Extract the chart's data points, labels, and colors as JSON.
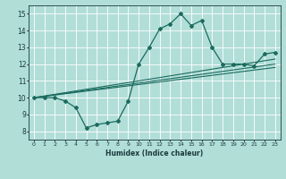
{
  "xlabel": "Humidex (Indice chaleur)",
  "ylabel": "",
  "background_color": "#b2ded8",
  "grid_color": "#ffffff",
  "line_color": "#1a6b5e",
  "xlim": [
    -0.5,
    23.5
  ],
  "ylim": [
    7.5,
    15.5
  ],
  "xticks": [
    0,
    1,
    2,
    3,
    4,
    5,
    6,
    7,
    8,
    9,
    10,
    11,
    12,
    13,
    14,
    15,
    16,
    17,
    18,
    19,
    20,
    21,
    22,
    23
  ],
  "yticks": [
    8,
    9,
    10,
    11,
    12,
    13,
    14,
    15
  ],
  "main_line_x": [
    0,
    1,
    2,
    3,
    4,
    5,
    6,
    7,
    8,
    9,
    10,
    11,
    12,
    13,
    14,
    15,
    16,
    17,
    18,
    19,
    20,
    21,
    22,
    23
  ],
  "main_line_y": [
    10.0,
    10.0,
    10.0,
    9.8,
    9.4,
    8.2,
    8.4,
    8.5,
    8.6,
    9.8,
    12.0,
    13.0,
    14.1,
    14.4,
    15.0,
    14.3,
    14.6,
    13.0,
    12.0,
    12.0,
    12.0,
    11.9,
    12.6,
    12.7
  ],
  "trend1_x": [
    0,
    23
  ],
  "trend1_y": [
    10.0,
    12.3
  ],
  "trend2_x": [
    0,
    23
  ],
  "trend2_y": [
    10.0,
    11.8
  ],
  "trend3_x": [
    0,
    23
  ],
  "trend3_y": [
    10.0,
    12.0
  ]
}
